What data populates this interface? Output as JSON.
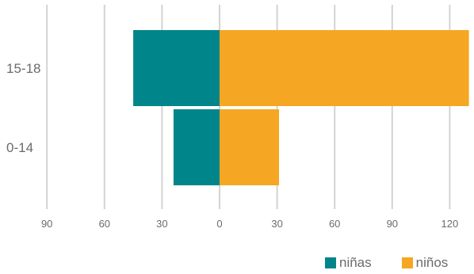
{
  "chart_data": {
    "type": "bar",
    "orientation": "horizontal-butterfly",
    "categories": [
      "15-18",
      "0-14"
    ],
    "series": [
      {
        "name": "niñas",
        "color": "#00858a",
        "values": [
          45,
          24
        ],
        "side": "left"
      },
      {
        "name": "niños",
        "color": "#f5a623",
        "values": [
          130,
          31
        ],
        "side": "right"
      }
    ],
    "x_ticks": [
      {
        "value": -90,
        "label": "90"
      },
      {
        "value": -60,
        "label": "60"
      },
      {
        "value": -30,
        "label": "30"
      },
      {
        "value": 0,
        "label": "0"
      },
      {
        "value": 30,
        "label": "30"
      },
      {
        "value": 60,
        "label": "60"
      },
      {
        "value": 90,
        "label": "90"
      },
      {
        "value": 120,
        "label": "120"
      }
    ],
    "xlim": [
      -90,
      130
    ],
    "grid": true,
    "legend_position": "bottom-right",
    "title": "",
    "xlabel": "",
    "ylabel": ""
  },
  "legend": {
    "left_label": "niñas",
    "right_label": "niños"
  }
}
